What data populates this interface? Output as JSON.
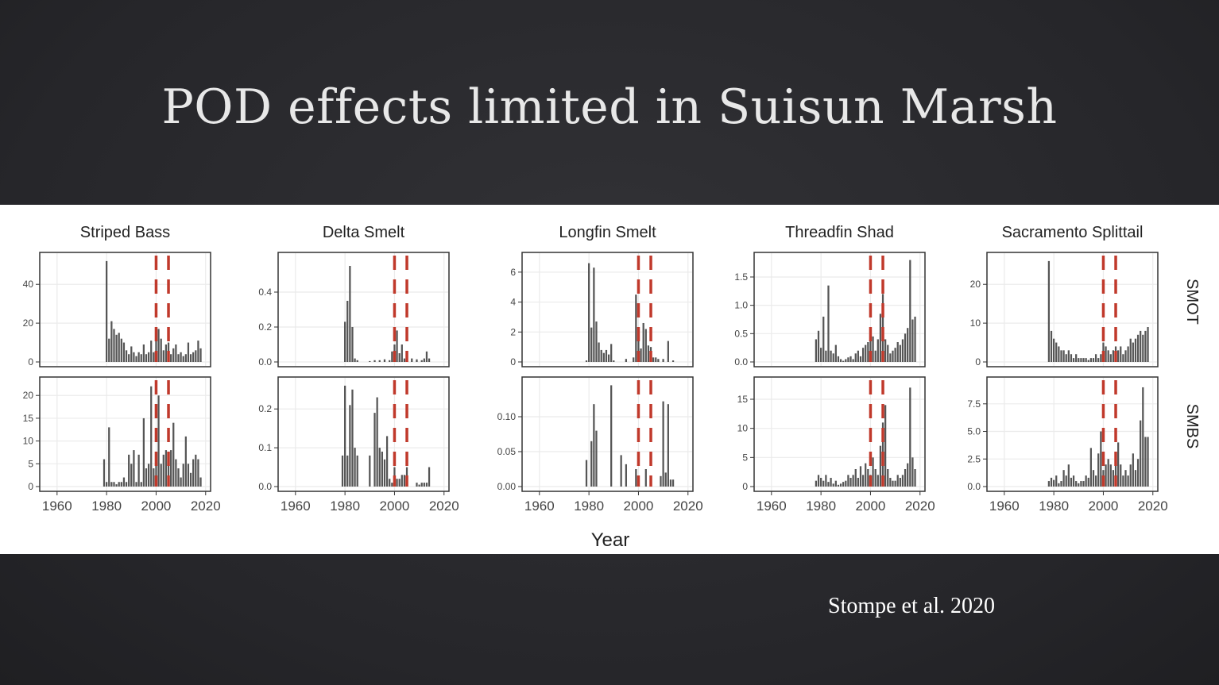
{
  "slide": {
    "title": "POD effects limited in Suisun Marsh",
    "citation": "Stompe et al. 2020"
  },
  "colors": {
    "bar": "#555555",
    "reference_line": "#c0392b",
    "panel_border": "#333333",
    "grid": "#ebebeb"
  },
  "chart_data": {
    "type": "bar",
    "layout": "facet-grid",
    "xlabel": "Year",
    "x_ticks": [
      1960,
      1980,
      2000,
      2020
    ],
    "xlim": [
      1953,
      2022
    ],
    "reference_lines_x": [
      2000,
      2005
    ],
    "columns": [
      "Striped Bass",
      "Delta Smelt",
      "Longfin Smelt",
      "Threadfin Shad",
      "Sacramento Splittail"
    ],
    "rows": [
      "SMOT",
      "SMBS"
    ],
    "panels": [
      {
        "row": "SMOT",
        "column": "Striped Bass",
        "ylim": [
          0,
          54
        ],
        "y_ticks": [
          0,
          20,
          40
        ],
        "y_tick_labels": [
          "0",
          "20",
          "40"
        ],
        "x": [
          1980,
          1981,
          1982,
          1983,
          1984,
          1985,
          1986,
          1987,
          1988,
          1989,
          1990,
          1991,
          1992,
          1993,
          1994,
          1995,
          1996,
          1997,
          1998,
          1999,
          2000,
          2001,
          2002,
          2003,
          2004,
          2005,
          2006,
          2007,
          2008,
          2009,
          2010,
          2011,
          2012,
          2013,
          2014,
          2015,
          2016,
          2017,
          2018
        ],
        "values": [
          52,
          12,
          21,
          17,
          14,
          15,
          12,
          10,
          6,
          4,
          8,
          5,
          3,
          5,
          4,
          9,
          4,
          5,
          11,
          5,
          14,
          17,
          12,
          6,
          9,
          10,
          4,
          7,
          9,
          4,
          5,
          3,
          4,
          10,
          4,
          5,
          6,
          11,
          7
        ]
      },
      {
        "row": "SMOT",
        "column": "Delta Smelt",
        "ylim": [
          0,
          0.6
        ],
        "y_ticks": [
          0,
          0.2,
          0.4
        ],
        "y_tick_labels": [
          "0.0",
          "0.2",
          "0.4"
        ],
        "x": [
          1980,
          1981,
          1982,
          1983,
          1984,
          1985,
          1990,
          1992,
          1994,
          1996,
          1998,
          1999,
          2000,
          2001,
          2002,
          2003,
          2004,
          2005,
          2007,
          2009,
          2011,
          2012,
          2013,
          2014
        ],
        "values": [
          0.23,
          0.35,
          0.55,
          0.2,
          0.02,
          0.01,
          0.005,
          0.01,
          0.01,
          0.015,
          0.01,
          0.06,
          0.1,
          0.18,
          0.05,
          0.1,
          0.02,
          0.04,
          0.02,
          0.015,
          0.01,
          0.02,
          0.06,
          0.02
        ]
      },
      {
        "row": "SMOT",
        "column": "Longfin Smelt",
        "ylim": [
          0,
          7
        ],
        "y_ticks": [
          0,
          2,
          4,
          6
        ],
        "y_tick_labels": [
          "0",
          "2",
          "4",
          "6"
        ],
        "x": [
          1979,
          1980,
          1981,
          1982,
          1983,
          1984,
          1985,
          1986,
          1987,
          1988,
          1989,
          1990,
          1995,
          1998,
          1999,
          2000,
          2001,
          2002,
          2003,
          2004,
          2005,
          2006,
          2007,
          2008,
          2010,
          2012,
          2014
        ],
        "values": [
          0.1,
          6.6,
          2.3,
          6.3,
          2.7,
          1.3,
          0.8,
          0.6,
          0.8,
          0.5,
          1.2,
          0.1,
          0.2,
          0.3,
          4.5,
          2.0,
          0.9,
          2.6,
          2.2,
          1.1,
          1.0,
          0.3,
          0.3,
          0.2,
          0.2,
          1.4,
          0.1
        ]
      },
      {
        "row": "SMOT",
        "column": "Threadfin Shad",
        "ylim": [
          0,
          1.85
        ],
        "y_ticks": [
          0,
          0.5,
          1.0,
          1.5
        ],
        "y_tick_labels": [
          "0.0",
          "0.5",
          "1.0",
          "1.5"
        ],
        "x": [
          1978,
          1979,
          1980,
          1981,
          1982,
          1983,
          1984,
          1985,
          1986,
          1987,
          1988,
          1989,
          1990,
          1991,
          1992,
          1993,
          1994,
          1995,
          1996,
          1997,
          1998,
          1999,
          2000,
          2001,
          2002,
          2003,
          2004,
          2005,
          2006,
          2007,
          2008,
          2009,
          2010,
          2011,
          2012,
          2013,
          2014,
          2015,
          2016,
          2017,
          2018
        ],
        "values": [
          0.4,
          0.55,
          0.25,
          0.8,
          0.2,
          1.35,
          0.2,
          0.15,
          0.3,
          0.1,
          0.05,
          0.02,
          0.05,
          0.08,
          0.1,
          0.05,
          0.15,
          0.2,
          0.1,
          0.25,
          0.3,
          0.35,
          0.4,
          0.45,
          0.2,
          0.4,
          0.85,
          1.2,
          0.4,
          0.3,
          0.15,
          0.2,
          0.25,
          0.35,
          0.3,
          0.4,
          0.5,
          0.6,
          1.8,
          0.75,
          0.8
        ]
      },
      {
        "row": "SMOT",
        "column": "Sacramento Splittail",
        "ylim": [
          0,
          27
        ],
        "y_ticks": [
          0,
          10,
          20
        ],
        "y_tick_labels": [
          "0",
          "10",
          "20"
        ],
        "x": [
          1978,
          1979,
          1980,
          1981,
          1982,
          1983,
          1984,
          1985,
          1986,
          1987,
          1988,
          1989,
          1990,
          1991,
          1992,
          1993,
          1994,
          1995,
          1996,
          1997,
          1998,
          1999,
          2000,
          2001,
          2002,
          2003,
          2004,
          2005,
          2006,
          2007,
          2008,
          2009,
          2010,
          2011,
          2012,
          2013,
          2014,
          2015,
          2016,
          2017,
          2018
        ],
        "values": [
          26,
          8,
          6,
          5,
          4,
          3,
          3,
          2,
          3,
          2,
          1,
          2,
          1,
          1,
          1,
          1,
          0.5,
          1,
          1,
          2,
          1,
          2,
          5,
          4,
          3,
          2,
          3,
          4,
          3,
          4,
          2,
          3,
          4,
          6,
          5,
          6,
          7,
          8,
          7,
          8,
          9
        ]
      },
      {
        "row": "SMBS",
        "column": "Striped Bass",
        "ylim": [
          0,
          23
        ],
        "y_ticks": [
          0,
          5,
          10,
          15,
          20
        ],
        "y_tick_labels": [
          "0",
          "5",
          "10",
          "15",
          "20"
        ],
        "x": [
          1979,
          1980,
          1981,
          1982,
          1983,
          1984,
          1985,
          1986,
          1987,
          1988,
          1989,
          1990,
          1991,
          1992,
          1993,
          1994,
          1995,
          1996,
          1997,
          1998,
          1999,
          2000,
          2001,
          2002,
          2003,
          2004,
          2005,
          2006,
          2007,
          2008,
          2009,
          2010,
          2011,
          2012,
          2013,
          2014,
          2015,
          2016,
          2017,
          2018
        ],
        "values": [
          6,
          1,
          13,
          1,
          1,
          0.5,
          1,
          1,
          2,
          1,
          7,
          5,
          8,
          1,
          7,
          1,
          15,
          4,
          5,
          22,
          4,
          6,
          20,
          5,
          7,
          8,
          6,
          8,
          14,
          6,
          4,
          2,
          5,
          11,
          5,
          3,
          6,
          7,
          6,
          2
        ]
      },
      {
        "row": "SMBS",
        "column": "Delta Smelt",
        "ylim": [
          0,
          0.27
        ],
        "y_ticks": [
          0,
          0.1,
          0.2
        ],
        "y_tick_labels": [
          "0.0",
          "0.1",
          "0.2"
        ],
        "x": [
          1979,
          1980,
          1981,
          1982,
          1983,
          1984,
          1985,
          1990,
          1992,
          1993,
          1994,
          1995,
          1996,
          1997,
          1998,
          1999,
          2000,
          2001,
          2002,
          2003,
          2004,
          2005,
          2009,
          2010,
          2011,
          2012,
          2013,
          2014
        ],
        "values": [
          0.08,
          0.26,
          0.08,
          0.21,
          0.25,
          0.1,
          0.08,
          0.08,
          0.19,
          0.23,
          0.1,
          0.09,
          0.07,
          0.13,
          0.02,
          0.01,
          0.05,
          0.02,
          0.02,
          0.03,
          0.03,
          0.05,
          0.01,
          0.005,
          0.01,
          0.01,
          0.01,
          0.05
        ]
      },
      {
        "row": "SMBS",
        "column": "Longfin Smelt",
        "ylim": [
          0,
          0.15
        ],
        "y_ticks": [
          0,
          0.05,
          0.1
        ],
        "y_tick_labels": [
          "0.00",
          "0.05",
          "0.10"
        ],
        "x": [
          1979,
          1981,
          1982,
          1983,
          1989,
          1993,
          1995,
          1999,
          2003,
          2009,
          2010,
          2011,
          2012,
          2013,
          2014
        ],
        "values": [
          0.038,
          0.065,
          0.118,
          0.08,
          0.145,
          0.045,
          0.032,
          0.025,
          0.025,
          0.015,
          0.122,
          0.02,
          0.118,
          0.01,
          0.01
        ]
      },
      {
        "row": "SMBS",
        "column": "Threadfin Shad",
        "ylim": [
          0,
          18
        ],
        "y_ticks": [
          0,
          5,
          10,
          15
        ],
        "y_tick_labels": [
          "0",
          "5",
          "10",
          "15"
        ],
        "x": [
          1978,
          1979,
          1980,
          1981,
          1982,
          1983,
          1984,
          1985,
          1986,
          1987,
          1988,
          1989,
          1990,
          1991,
          1992,
          1993,
          1994,
          1995,
          1996,
          1997,
          1998,
          1999,
          2000,
          2001,
          2002,
          2003,
          2004,
          2005,
          2006,
          2007,
          2008,
          2009,
          2010,
          2011,
          2012,
          2013,
          2014,
          2015,
          2016,
          2017,
          2018
        ],
        "values": [
          1,
          2,
          1.5,
          1,
          2,
          0.8,
          1.5,
          0.5,
          1,
          0.3,
          0.5,
          0.8,
          1,
          2,
          1.5,
          2,
          3,
          1.5,
          3.5,
          2,
          4,
          3,
          2,
          5,
          3,
          2,
          7,
          11,
          14,
          3,
          1.5,
          1,
          1,
          2,
          1.5,
          2,
          3,
          4,
          17,
          5,
          3
        ]
      },
      {
        "row": "SMBS",
        "column": "Sacramento Splittail",
        "ylim": [
          0,
          9.5
        ],
        "y_ticks": [
          0,
          2.5,
          5.0,
          7.5
        ],
        "y_tick_labels": [
          "0.0",
          "2.5",
          "5.0",
          "7.5"
        ],
        "x": [
          1978,
          1979,
          1980,
          1981,
          1982,
          1983,
          1984,
          1985,
          1986,
          1987,
          1988,
          1989,
          1990,
          1991,
          1992,
          1993,
          1994,
          1995,
          1996,
          1997,
          1998,
          1999,
          2000,
          2001,
          2002,
          2003,
          2004,
          2005,
          2006,
          2007,
          2008,
          2009,
          2010,
          2011,
          2012,
          2013,
          2014,
          2015,
          2016,
          2017,
          2018
        ],
        "values": [
          0.5,
          0.8,
          0.6,
          1,
          0.3,
          0.5,
          1.5,
          1,
          2,
          0.8,
          1,
          0.5,
          0.3,
          0.5,
          0.5,
          1,
          0.8,
          3.5,
          1.5,
          1,
          3,
          5,
          1.5,
          2,
          2.5,
          2,
          1.5,
          3,
          4,
          2,
          1,
          1.5,
          1,
          2,
          3,
          1.5,
          2.5,
          6,
          9,
          4.5,
          4.5
        ]
      }
    ]
  }
}
